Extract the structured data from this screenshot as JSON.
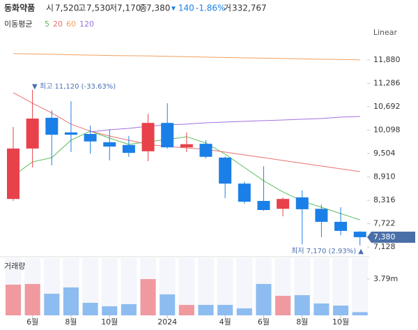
{
  "header": {
    "name": "동화약품",
    "open_label": "시",
    "open": "7,520",
    "high_label": "고",
    "high": "7,530",
    "low_label": "저",
    "low": "7,170",
    "close_label": "종",
    "close": "7,380",
    "change": "▾ 140",
    "change_pct": "-1.86%",
    "volume_label": "거",
    "volume": "332,767"
  },
  "chart_data": {
    "type": "candlestick",
    "scale_label": "Linear",
    "ma_title": "이동평균",
    "categories": [
      null,
      "6월",
      null,
      "8월",
      null,
      "10월",
      null,
      null,
      "2024",
      null,
      null,
      "4월",
      null,
      "6월",
      null,
      "8월",
      null,
      "10월",
      null
    ],
    "open": [
      8350,
      9630,
      10410,
      10040,
      10000,
      9790,
      9720,
      9560,
      10280,
      9660,
      9750,
      9400,
      8740,
      8300,
      8100,
      8390,
      8100,
      7770,
      7520
    ],
    "high": [
      10180,
      11120,
      10600,
      10830,
      10210,
      10120,
      9950,
      10510,
      10780,
      10040,
      9840,
      9430,
      8790,
      9180,
      8390,
      8570,
      8210,
      8140,
      7530
    ],
    "low": [
      8300,
      9150,
      9200,
      9540,
      9500,
      9330,
      9420,
      9310,
      9630,
      9540,
      9380,
      8370,
      8230,
      8050,
      7910,
      7200,
      7380,
      7430,
      7170
    ],
    "close": [
      9630,
      10390,
      9980,
      9980,
      9810,
      9680,
      9520,
      10280,
      9660,
      9740,
      9420,
      8740,
      8280,
      8070,
      8350,
      8090,
      7770,
      7540,
      7380
    ],
    "up_color": "#e8414a",
    "down_color": "#1b7fe8",
    "ylim": [
      6990,
      12160
    ],
    "yticks": [
      {
        "value": 11880,
        "label": "11,880"
      },
      {
        "value": 11286,
        "label": "11,286"
      },
      {
        "value": 10692,
        "label": "10,692"
      },
      {
        "value": 10098,
        "label": "10,098"
      },
      {
        "value": 9504,
        "label": "9,504"
      },
      {
        "value": 8910,
        "label": "8,910"
      },
      {
        "value": 8316,
        "label": "8,316"
      },
      {
        "value": 7722,
        "label": "7,722"
      },
      {
        "value": 7128,
        "label": "7,128"
      }
    ],
    "last_price": {
      "value": 7380,
      "label": "7,380"
    },
    "high_annotation": "▼ 최고 11,120 (-33.63%)",
    "low_annotation": "최저 7,170 (2.93%) ▲",
    "ma_series": [
      {
        "name": "5",
        "color": "#5cbd5c",
        "values": [
          8937,
          9291,
          9398,
          9841,
          10071,
          9894,
          9735,
          9805,
          9859,
          9930,
          9770,
          9487,
          9150,
          8813,
          8529,
          8299,
          8139,
          7979,
          7820
        ]
      },
      {
        "name": "20",
        "color": "#e87070",
        "values": [
          11047,
          10781,
          10533,
          10249,
          10071,
          9947,
          9841,
          9735,
          9681,
          9646,
          9610,
          9540,
          9469,
          9398,
          9327,
          9256,
          9185,
          9114,
          9043
        ]
      },
      {
        "name": "60",
        "color": "#f0a060",
        "values": [
          12040,
          12030,
          12020,
          12010,
          12000,
          11990,
          11985,
          11980,
          11970,
          11960,
          11950,
          11940,
          11930,
          11925,
          11915,
          11905,
          11895,
          11890,
          11880
        ]
      },
      {
        "name": "120",
        "color": "#a070e0",
        "values": [
          null,
          null,
          null,
          null,
          10054,
          10107,
          10142,
          10196,
          10231,
          10249,
          10284,
          10302,
          10320,
          10338,
          10355,
          10373,
          10391,
          10426,
          10444
        ]
      }
    ],
    "volume_title": "거래량",
    "volume": [
      3210000,
      3280000,
      2260000,
      2920000,
      1310000,
      950000,
      1170000,
      3790000,
      2190000,
      1090000,
      1090000,
      1090000,
      730000,
      3280000,
      2040000,
      2110000,
      1240000,
      1020000,
      332767
    ],
    "volume_up_color": "#f0999f",
    "volume_down_color": "#8dbcf0",
    "volume_ylim": [
      0,
      5980000
    ],
    "volume_yticks": [
      {
        "value": 3790000,
        "label": "3.79m"
      }
    ]
  }
}
